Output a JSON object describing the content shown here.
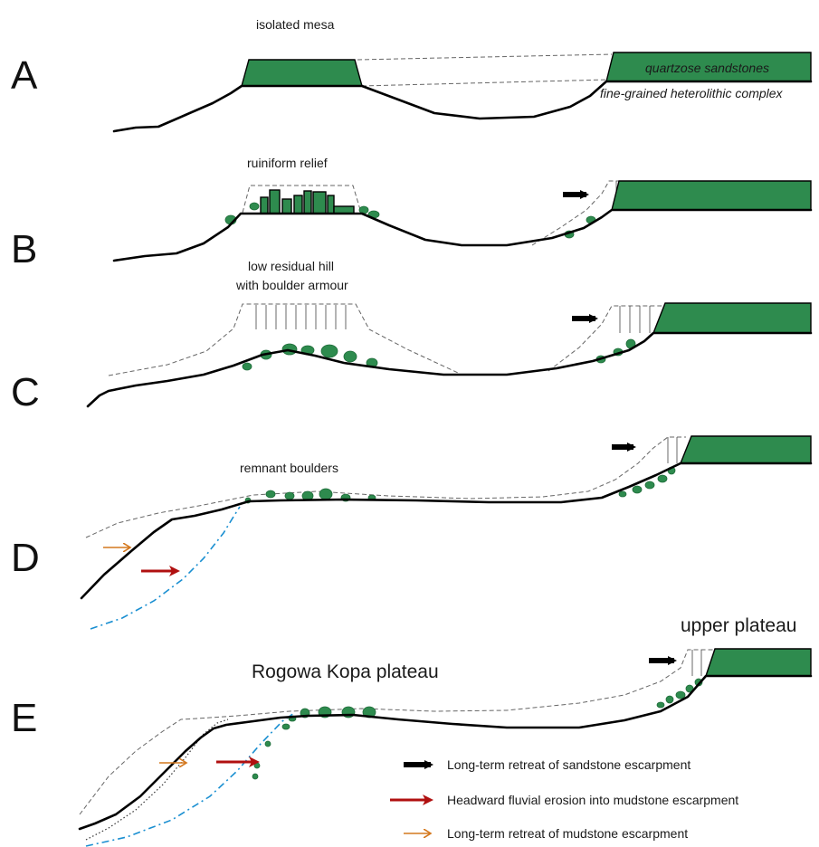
{
  "colors": {
    "sandstone": "#2e8b4e",
    "sandstone_arrow": "#000000",
    "fluvial_arrow": "#b01010",
    "mudstone_arrow": "#d4781e",
    "incision_line": "#1a8fd1"
  },
  "panels": {
    "a": {
      "letter": "A",
      "label": "isolated mesa",
      "sandstone_label": "quartzose sandstones",
      "heterolithic_label": "fine-grained heterolithic complex"
    },
    "b": {
      "letter": "B",
      "label": "ruiniform relief"
    },
    "c": {
      "letter": "C",
      "label_line1": "low residual hill",
      "label_line2": "with boulder armour"
    },
    "d": {
      "letter": "D",
      "label": "remnant boulders"
    },
    "e": {
      "letter": "E",
      "label_left": "Rogowa Kopa plateau",
      "label_right": "upper plateau"
    }
  },
  "legend": [
    {
      "icon": "black-arrow-icon",
      "color": "#000000",
      "text": "Long-term retreat of sandstone escarpment"
    },
    {
      "icon": "red-arrow-icon",
      "color": "#b01010",
      "text": "Headward fluvial erosion into mudstone escarpment"
    },
    {
      "icon": "orange-arrow-icon",
      "color": "#d4781e",
      "text": "Long-term retreat of mudstone escarpment"
    }
  ]
}
